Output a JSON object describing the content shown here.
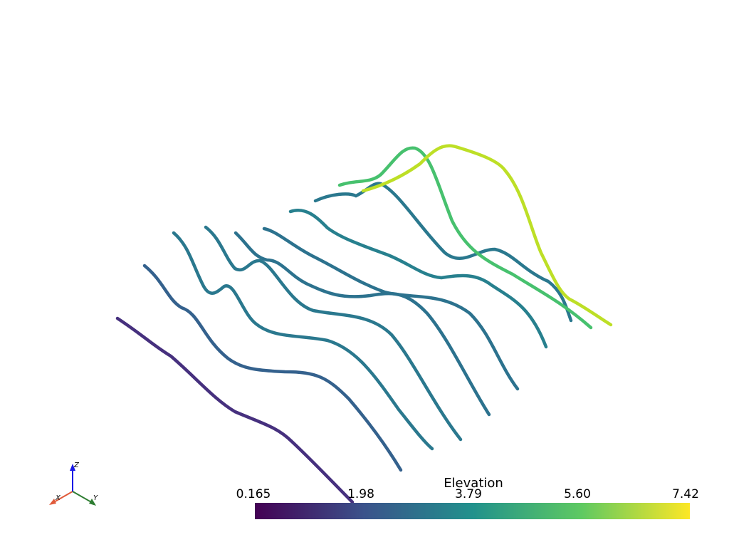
{
  "scalar_bar": {
    "title": "Elevation",
    "ticks": [
      "0.165",
      "1.98",
      "3.79",
      "5.60",
      "7.42"
    ],
    "colors": [
      "#440154",
      "#3b528b",
      "#21918c",
      "#5ec962",
      "#fde725"
    ]
  },
  "axes": {
    "x_label": "X",
    "y_label": "Y",
    "z_label": "Z",
    "x_color": "#e05a3a",
    "y_color": "#2e7d32",
    "z_color": "#1a1ae6"
  }
}
